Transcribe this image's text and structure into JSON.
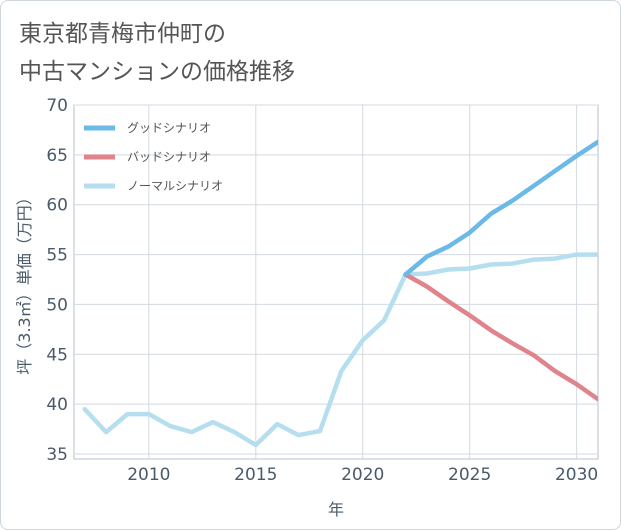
{
  "title_lines": [
    "東京都青梅市仲町の",
    "中古マンションの価格推移"
  ],
  "chart_data": {
    "type": "line",
    "xlabel": "年",
    "ylabel": "坪（3.3㎡）単価（万円）",
    "xlim": [
      2006.5,
      2031
    ],
    "ylim": [
      34.5,
      70
    ],
    "xticks": [
      2010,
      2015,
      2020,
      2025,
      2030
    ],
    "yticks": [
      35,
      40,
      45,
      50,
      55,
      60,
      65,
      70
    ],
    "grid": true,
    "legend_position": "top-left",
    "series": [
      {
        "name": "ノーマルシナリオ",
        "color": "#b5deef",
        "x": [
          2007,
          2008,
          2009,
          2010,
          2011,
          2012,
          2013,
          2014,
          2015,
          2016,
          2017,
          2018,
          2019,
          2020,
          2021,
          2022,
          2023,
          2024,
          2025,
          2026,
          2027,
          2028,
          2029,
          2030,
          2031
        ],
        "y": [
          39.5,
          37.2,
          39.0,
          39.0,
          37.8,
          37.2,
          38.2,
          37.2,
          35.9,
          38.0,
          36.9,
          37.3,
          43.3,
          46.4,
          48.4,
          53.0,
          53.1,
          53.5,
          53.6,
          54.0,
          54.1,
          54.5,
          54.6,
          55.0,
          55.0
        ]
      },
      {
        "name": "バッドシナリオ",
        "color": "#e0838b",
        "x": [
          2022,
          2023,
          2024,
          2025,
          2026,
          2027,
          2028,
          2029,
          2030,
          2031
        ],
        "y": [
          53.0,
          51.8,
          50.3,
          48.9,
          47.4,
          46.1,
          44.9,
          43.3,
          42.0,
          40.5
        ]
      },
      {
        "name": "グッドシナリオ",
        "color": "#6bb9e8",
        "x": [
          2022,
          2023,
          2024,
          2025,
          2026,
          2027,
          2028,
          2029,
          2030,
          2031
        ],
        "y": [
          53.0,
          54.8,
          55.8,
          57.2,
          59.1,
          60.4,
          61.9,
          63.4,
          64.9,
          66.3
        ]
      }
    ],
    "legend_order": [
      "グッドシナリオ",
      "バッドシナリオ",
      "ノーマルシナリオ"
    ]
  }
}
